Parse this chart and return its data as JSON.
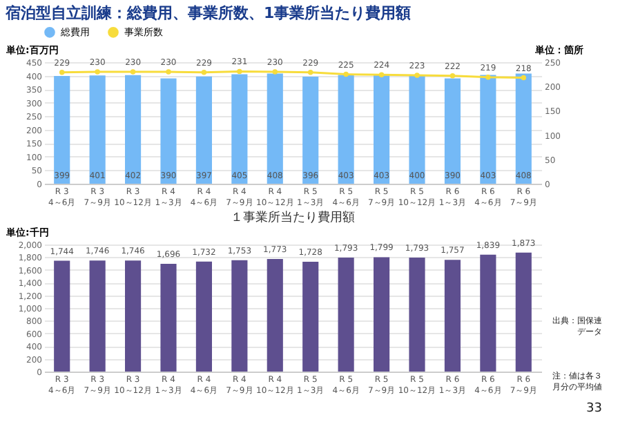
{
  "chart_data": [
    {
      "type": "bar",
      "title": "宿泊型自立訓練：総費用、事業所数、1事業所当たり費用額",
      "ylabel": "単位:百万円",
      "y2label": "単位：箇所",
      "categories": [
        "R 3\n4～6月",
        "R 3\n7～9月",
        "R 3\n10～12月",
        "R 4\n1～3月",
        "R 4\n4～6月",
        "R 4\n7～9月",
        "R 4\n10～12月",
        "R 5\n1～3月",
        "R 5\n4～6月",
        "R 5\n7～9月",
        "R 5\n10～12月",
        "R 6\n1～3月",
        "R 6\n4～6月",
        "R 6\n7～9月"
      ],
      "series": [
        {
          "name": "総費用",
          "type": "bar",
          "color": "#74b9f6",
          "values": [
            399,
            401,
            402,
            390,
            397,
            405,
            408,
            396,
            403,
            403,
            400,
            390,
            403,
            408
          ]
        },
        {
          "name": "事業所数",
          "type": "line",
          "axis": "y2",
          "color": "#f7dc3c",
          "marker": "circle",
          "values": [
            229,
            230,
            230,
            230,
            229,
            231,
            230,
            229,
            225,
            224,
            223,
            222,
            219,
            218
          ]
        }
      ],
      "data_labels": true,
      "ylim": [
        0,
        450
      ],
      "yticks": [
        0,
        50,
        100,
        150,
        200,
        250,
        300,
        350,
        400,
        450
      ],
      "y2lim": [
        0,
        250
      ],
      "y2ticks": [
        0,
        50,
        100,
        150,
        200,
        250
      ],
      "grid": "y",
      "legend": "top"
    },
    {
      "type": "bar",
      "title": "１事業所当たり費用額",
      "ylabel": "単位:千円",
      "categories": [
        "R 3\n4～6月",
        "R 3\n7～9月",
        "R 3\n10～12月",
        "R 4\n1～3月",
        "R 4\n4～6月",
        "R 4\n7～9月",
        "R 4\n10～12月",
        "R 5\n1～3月",
        "R 5\n4～6月",
        "R 5\n7～9月",
        "R 5\n10～12月",
        "R 6\n1～3月",
        "R 6\n4～6月",
        "R 6\n7～9月"
      ],
      "series": [
        {
          "color": "#5e4f8f",
          "values": [
            1744,
            1746,
            1746,
            1696,
            1732,
            1753,
            1773,
            1728,
            1793,
            1799,
            1793,
            1757,
            1839,
            1873
          ],
          "value_labels": [
            "1,744",
            "1,746",
            "1,746",
            "1,696",
            "1,732",
            "1,753",
            "1,773",
            "1,728",
            "1,793",
            "1,799",
            "1,793",
            "1,757",
            "1,839",
            "1,873"
          ]
        }
      ],
      "ylim": [
        0,
        2000
      ],
      "yticks": [
        0,
        {
          "value": 200,
          "label": "200"
        },
        {
          "value": 400,
          "label": "400"
        },
        {
          "value": 600,
          "label": "600"
        },
        {
          "value": 800,
          "label": "800"
        },
        {
          "value": 1000,
          "label": "1,000"
        },
        {
          "value": 1200,
          "label": "1,200"
        },
        {
          "value": 1400,
          "label": "1,400"
        },
        {
          "value": 1600,
          "label": "1,600"
        },
        {
          "value": 1800,
          "label": "1,800"
        },
        {
          "value": 2000,
          "label": "2,000"
        }
      ],
      "grid": "y",
      "annotations": [
        "出典：国保連データ",
        "注：値は各３月分の平均値",
        "33"
      ]
    }
  ]
}
